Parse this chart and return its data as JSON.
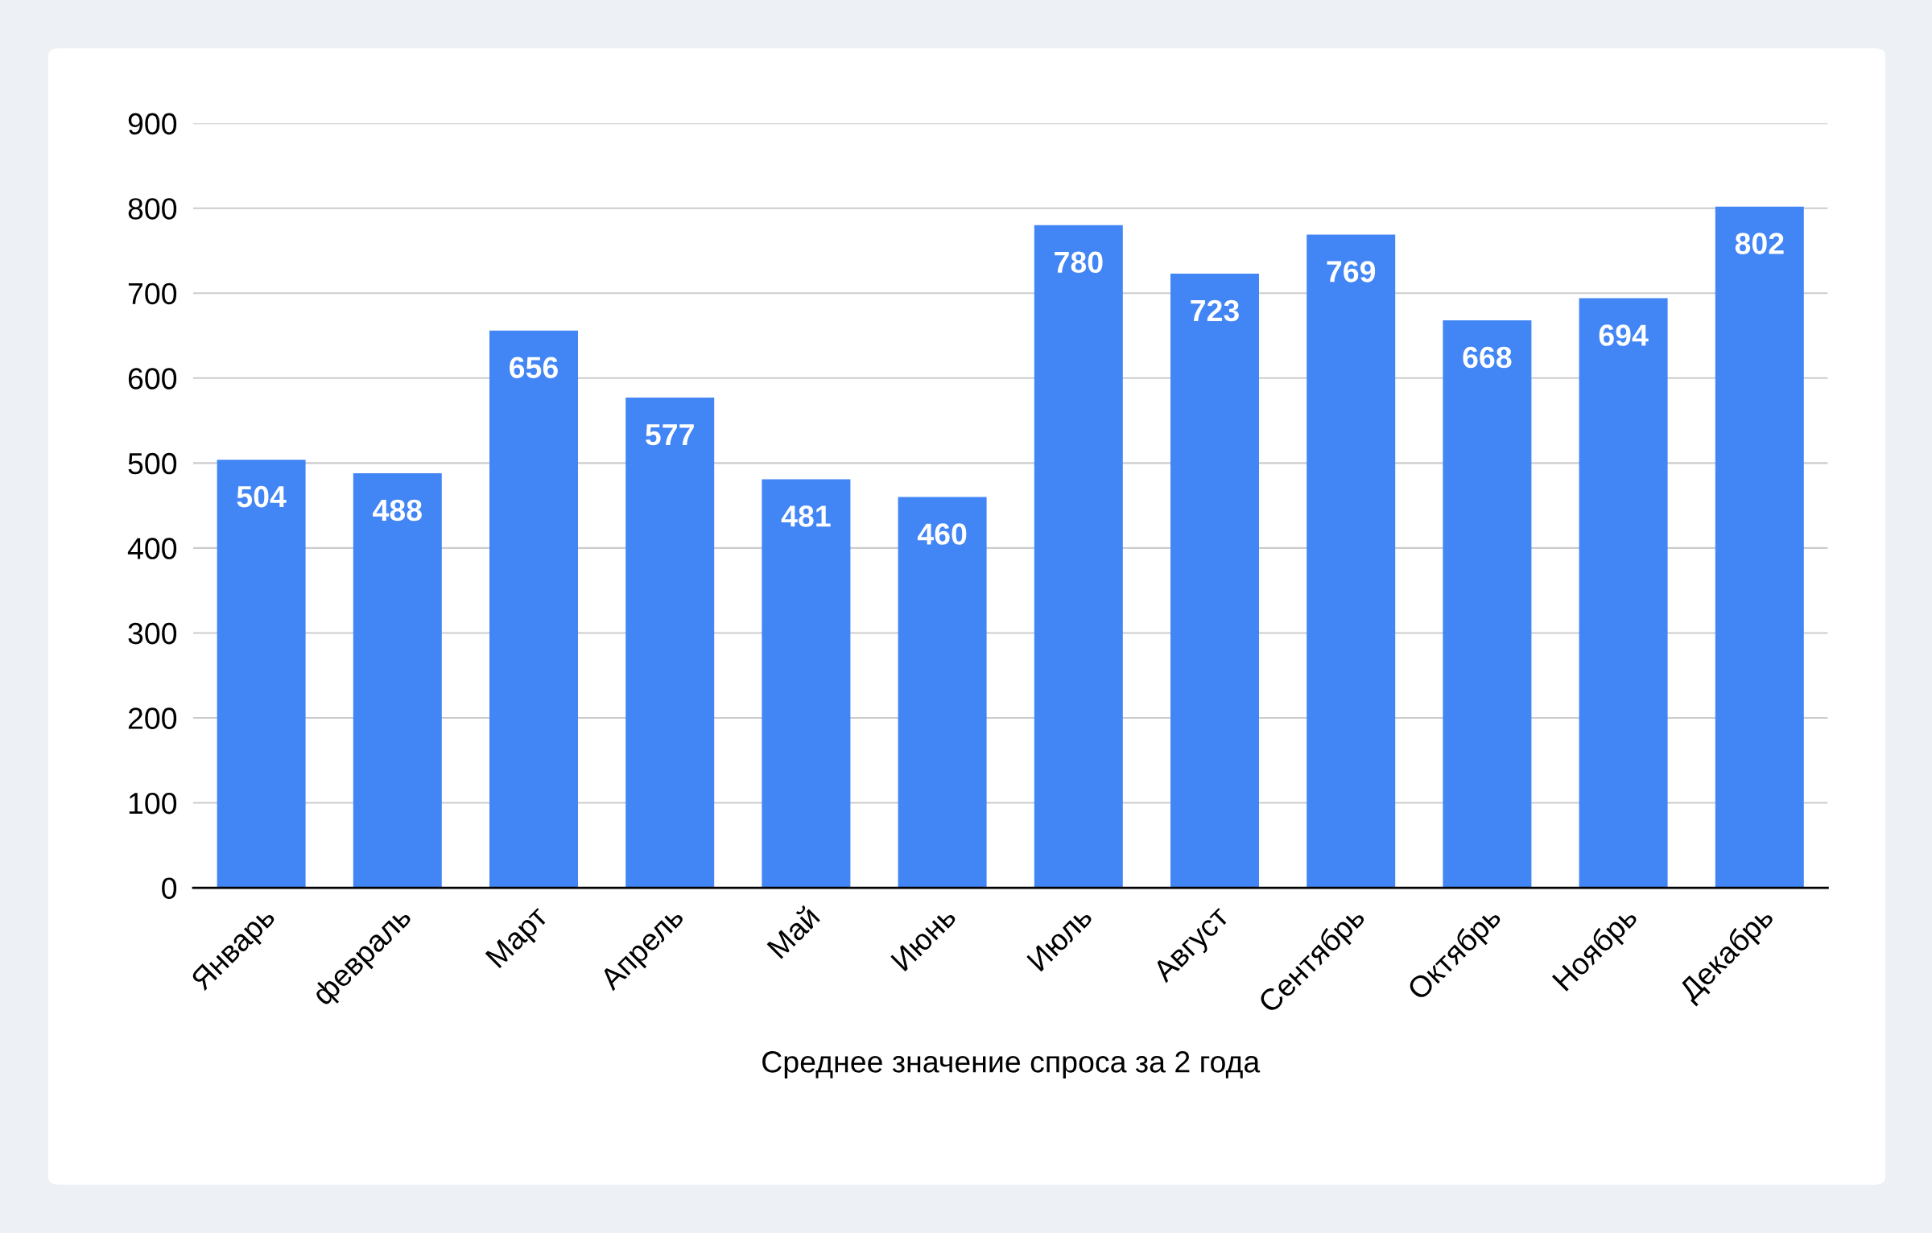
{
  "chart_data": {
    "type": "bar",
    "xlabel": "Среднее значение спроса за 2 года",
    "categories": [
      "Январь",
      "февраль",
      "Март",
      "Апрель",
      "Май",
      "Июнь",
      "Июль",
      "Август",
      "Сентябрь",
      "Октябрь",
      "Ноябрь",
      "Декабрь"
    ],
    "values": [
      504,
      488,
      656,
      577,
      481,
      460,
      780,
      723,
      769,
      668,
      694,
      802
    ],
    "color": "#4285f4",
    "ylim": [
      0,
      900
    ],
    "yticks": [
      0,
      100,
      200,
      300,
      400,
      500,
      600,
      700,
      800,
      900
    ],
    "grid": "y",
    "data_labels": true,
    "legend": false
  }
}
